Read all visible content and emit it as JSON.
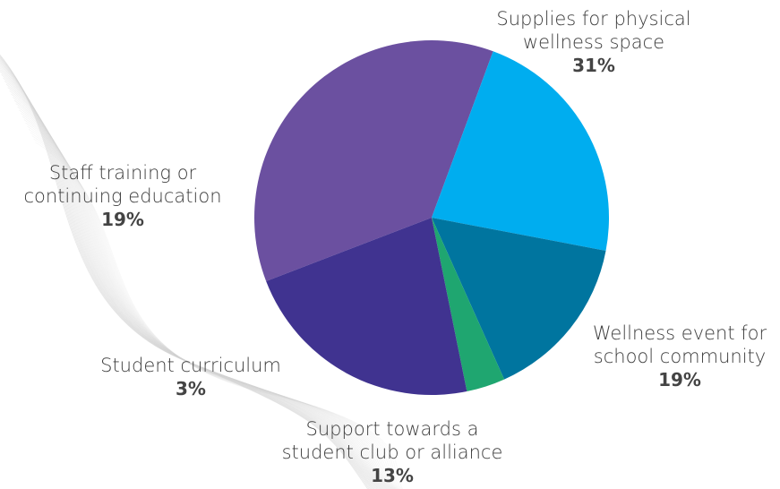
{
  "chart_data": {
    "type": "pie",
    "title": "",
    "slices": [
      {
        "label_lines": [
          "Supplies for physical",
          "wellness space"
        ],
        "percent_label": "31%",
        "value": 31,
        "color": "#6b50a0"
      },
      {
        "label_lines": [
          "Wellness event for",
          "school community"
        ],
        "percent_label": "19%",
        "value": 19,
        "color": "#00adef"
      },
      {
        "label_lines": [
          "Support towards a",
          "student club or alliance"
        ],
        "percent_label": "13%",
        "value": 13,
        "color": "#00759f"
      },
      {
        "label_lines": [
          "Student curriculum"
        ],
        "percent_label": "3%",
        "value": 3,
        "color": "#1fa670"
      },
      {
        "label_lines": [
          "Staff training or",
          "continuing education"
        ],
        "percent_label": "19%",
        "value": 19,
        "color": "#403390"
      }
    ],
    "legend": "none",
    "grid": false
  }
}
